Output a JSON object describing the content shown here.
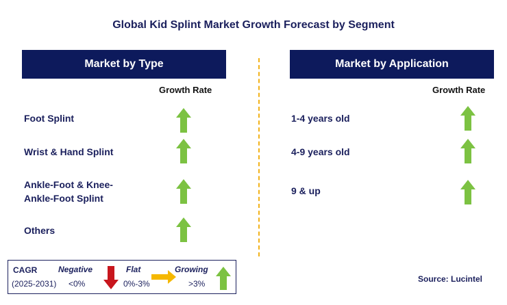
{
  "title": "Global Kid Splint Market Growth Forecast by Segment",
  "left_panel": {
    "header": "Market by Type",
    "rate_label": "Growth Rate",
    "items": [
      {
        "label": "Foot Splint",
        "trend": "growing"
      },
      {
        "label": "Wrist & Hand Splint",
        "trend": "growing"
      },
      {
        "label_line1": "Ankle-Foot & Knee-",
        "label_line2": "Ankle-Foot Splint",
        "trend": "growing"
      },
      {
        "label": "Others",
        "trend": "growing"
      }
    ]
  },
  "right_panel": {
    "header": "Market by Application",
    "rate_label": "Growth Rate",
    "items": [
      {
        "label": "1-4 years old",
        "trend": "growing"
      },
      {
        "label": "4-9 years old",
        "trend": "growing"
      },
      {
        "label": "9 & up",
        "trend": "growing"
      }
    ]
  },
  "legend": {
    "cagr_label": "CAGR",
    "period": "(2025-2031)",
    "negative_label": "Negative",
    "negative_range": "<0%",
    "flat_label": "Flat",
    "flat_range": "0%-3%",
    "growing_label": "Growing",
    "growing_range": ">3%"
  },
  "source": "Source: Lucintel",
  "colors": {
    "header_bg": "#0d1a5c",
    "growing": "#7cc242",
    "negative": "#c8161d",
    "flat": "#f5b800",
    "divider": "#f2b21a"
  }
}
